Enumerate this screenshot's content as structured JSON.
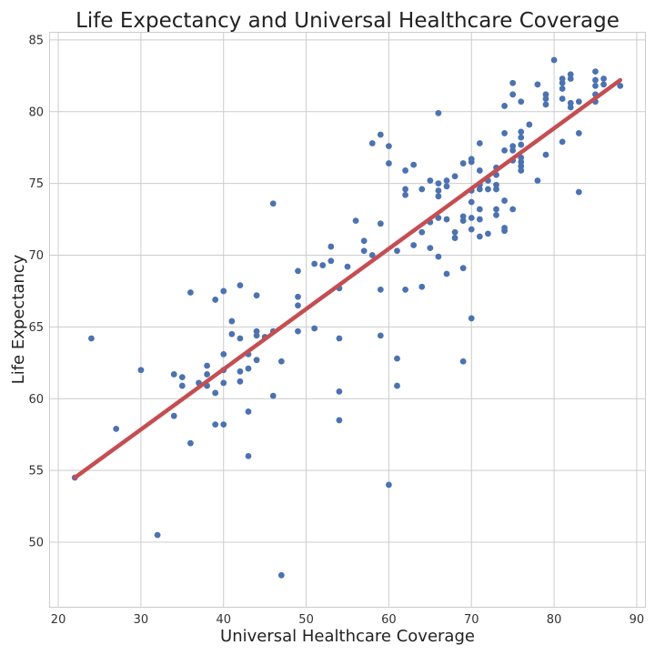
{
  "chart_data": {
    "type": "scatter",
    "title": "Life Expectancy and Universal Healthcare Coverage",
    "xlabel": "Universal Healthcare Coverage",
    "ylabel": "Life Expectancy",
    "xlim": [
      19,
      91
    ],
    "ylim": [
      45.5,
      85.5
    ],
    "xticks": [
      20,
      30,
      40,
      50,
      60,
      70,
      80,
      90
    ],
    "yticks": [
      50,
      55,
      60,
      65,
      70,
      75,
      80,
      85
    ],
    "grid": true,
    "point_color": "#4c72b0",
    "line_color": "#c44e52",
    "trend_line": {
      "x": [
        22,
        88
      ],
      "y": [
        54.5,
        82.2
      ]
    },
    "points": [
      [
        22,
        54.5
      ],
      [
        24,
        64.2
      ],
      [
        27,
        57.9
      ],
      [
        30,
        62.0
      ],
      [
        32,
        50.5
      ],
      [
        34,
        61.7
      ],
      [
        34,
        58.8
      ],
      [
        35,
        61.5
      ],
      [
        35,
        60.9
      ],
      [
        36,
        56.9
      ],
      [
        36,
        67.4
      ],
      [
        37,
        61.1
      ],
      [
        38,
        62.3
      ],
      [
        38,
        61.7
      ],
      [
        38,
        60.9
      ],
      [
        39,
        60.4
      ],
      [
        39,
        58.2
      ],
      [
        39,
        66.9
      ],
      [
        40,
        67.5
      ],
      [
        40,
        63.1
      ],
      [
        40,
        62.0
      ],
      [
        40,
        61.1
      ],
      [
        40,
        58.2
      ],
      [
        41,
        65.4
      ],
      [
        41,
        64.5
      ],
      [
        42,
        67.9
      ],
      [
        42,
        64.2
      ],
      [
        42,
        61.9
      ],
      [
        42,
        61.2
      ],
      [
        43,
        63.1
      ],
      [
        43,
        62.1
      ],
      [
        43,
        59.1
      ],
      [
        43,
        56.0
      ],
      [
        44,
        67.2
      ],
      [
        44,
        64.7
      ],
      [
        44,
        64.4
      ],
      [
        44,
        62.7
      ],
      [
        45,
        64.3
      ],
      [
        46,
        73.6
      ],
      [
        46,
        64.7
      ],
      [
        46,
        60.2
      ],
      [
        47,
        62.6
      ],
      [
        47,
        47.7
      ],
      [
        49,
        68.9
      ],
      [
        49,
        67.1
      ],
      [
        49,
        66.5
      ],
      [
        49,
        64.7
      ],
      [
        51,
        69.4
      ],
      [
        51,
        64.9
      ],
      [
        52,
        69.3
      ],
      [
        53,
        70.6
      ],
      [
        53,
        69.6
      ],
      [
        54,
        67.7
      ],
      [
        54,
        64.2
      ],
      [
        54,
        60.5
      ],
      [
        54,
        58.5
      ],
      [
        55,
        69.2
      ],
      [
        56,
        72.4
      ],
      [
        57,
        71.0
      ],
      [
        57,
        70.3
      ],
      [
        58,
        77.8
      ],
      [
        58,
        70.0
      ],
      [
        59,
        78.4
      ],
      [
        59,
        72.2
      ],
      [
        59,
        67.6
      ],
      [
        59,
        64.4
      ],
      [
        60,
        77.6
      ],
      [
        60,
        76.4
      ],
      [
        60,
        54.0
      ],
      [
        61,
        70.3
      ],
      [
        61,
        62.8
      ],
      [
        61,
        60.9
      ],
      [
        62,
        75.9
      ],
      [
        62,
        74.6
      ],
      [
        62,
        74.2
      ],
      [
        62,
        67.6
      ],
      [
        63,
        76.3
      ],
      [
        63,
        70.7
      ],
      [
        64,
        74.6
      ],
      [
        64,
        71.6
      ],
      [
        64,
        67.8
      ],
      [
        65,
        75.2
      ],
      [
        65,
        72.3
      ],
      [
        65,
        70.5
      ],
      [
        66,
        79.9
      ],
      [
        66,
        75.0
      ],
      [
        66,
        74.5
      ],
      [
        66,
        74.1
      ],
      [
        66,
        72.6
      ],
      [
        66,
        69.9
      ],
      [
        67,
        75.2
      ],
      [
        67,
        74.8
      ],
      [
        67,
        72.5
      ],
      [
        67,
        68.7
      ],
      [
        68,
        75.5
      ],
      [
        68,
        71.6
      ],
      [
        68,
        71.2
      ],
      [
        69,
        76.4
      ],
      [
        69,
        72.7
      ],
      [
        69,
        72.4
      ],
      [
        69,
        69.1
      ],
      [
        69,
        62.6
      ],
      [
        70,
        76.7
      ],
      [
        70,
        76.5
      ],
      [
        70,
        74.5
      ],
      [
        70,
        73.7
      ],
      [
        70,
        72.6
      ],
      [
        70,
        71.8
      ],
      [
        70,
        65.6
      ],
      [
        71,
        77.8
      ],
      [
        71,
        75.9
      ],
      [
        71,
        74.9
      ],
      [
        71,
        74.6
      ],
      [
        71,
        73.2
      ],
      [
        71,
        72.5
      ],
      [
        71,
        71.3
      ],
      [
        72,
        75.2
      ],
      [
        72,
        74.6
      ],
      [
        72,
        71.5
      ],
      [
        73,
        76.1
      ],
      [
        73,
        75.6
      ],
      [
        73,
        74.9
      ],
      [
        73,
        74.6
      ],
      [
        73,
        73.2
      ],
      [
        73,
        72.8
      ],
      [
        74,
        80.4
      ],
      [
        74,
        78.5
      ],
      [
        74,
        77.3
      ],
      [
        74,
        73.8
      ],
      [
        74,
        71.9
      ],
      [
        74,
        71.7
      ],
      [
        75,
        82.0
      ],
      [
        75,
        81.2
      ],
      [
        75,
        77.6
      ],
      [
        75,
        77.3
      ],
      [
        75,
        76.6
      ],
      [
        75,
        73.2
      ],
      [
        76,
        80.7
      ],
      [
        76,
        78.6
      ],
      [
        76,
        78.2
      ],
      [
        76,
        77.7
      ],
      [
        76,
        76.8
      ],
      [
        76,
        76.5
      ],
      [
        76,
        76.2
      ],
      [
        76,
        75.9
      ],
      [
        77,
        79.1
      ],
      [
        78,
        81.9
      ],
      [
        78,
        75.2
      ],
      [
        79,
        81.2
      ],
      [
        79,
        80.9
      ],
      [
        79,
        80.5
      ],
      [
        79,
        77.0
      ],
      [
        80,
        83.6
      ],
      [
        81,
        82.3
      ],
      [
        81,
        82.0
      ],
      [
        81,
        81.6
      ],
      [
        81,
        80.9
      ],
      [
        81,
        77.9
      ],
      [
        82,
        82.6
      ],
      [
        82,
        82.3
      ],
      [
        82,
        80.6
      ],
      [
        82,
        80.3
      ],
      [
        83,
        80.7
      ],
      [
        83,
        78.5
      ],
      [
        83,
        74.4
      ],
      [
        85,
        82.8
      ],
      [
        85,
        82.2
      ],
      [
        85,
        81.8
      ],
      [
        85,
        81.2
      ],
      [
        85,
        80.7
      ],
      [
        86,
        82.3
      ],
      [
        86,
        81.9
      ],
      [
        88,
        81.8
      ]
    ]
  }
}
